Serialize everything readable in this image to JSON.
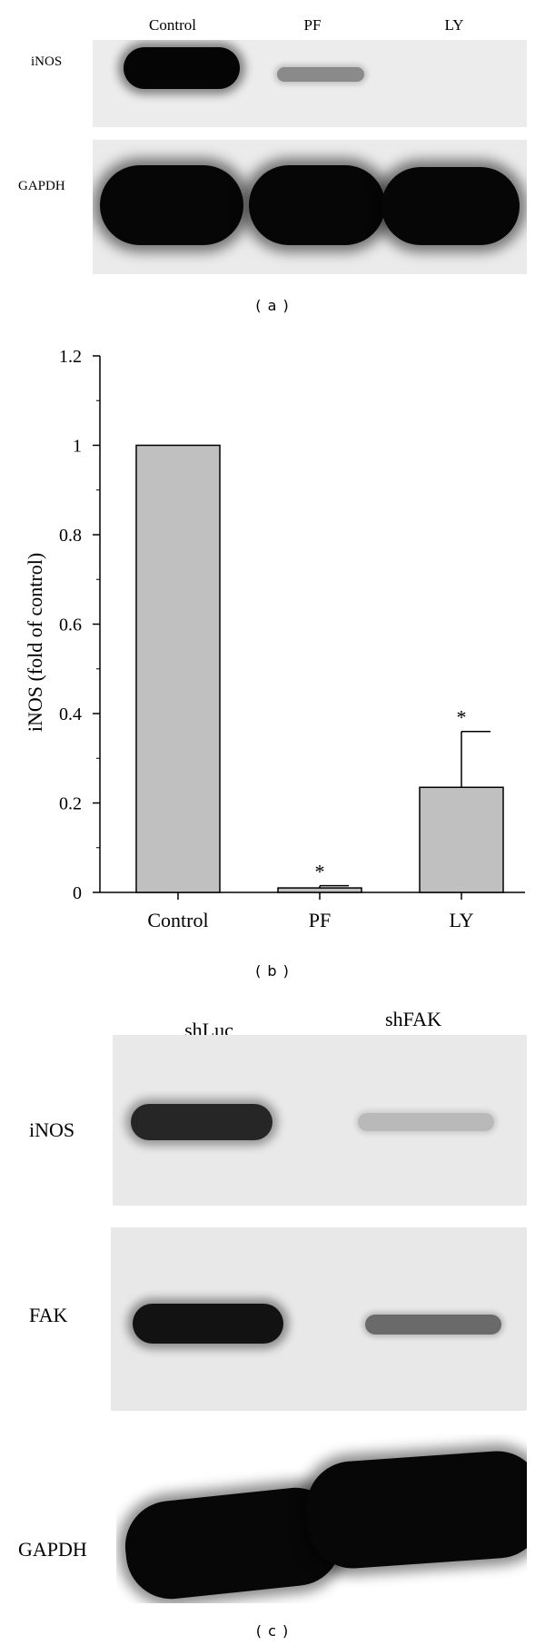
{
  "panel_a": {
    "lanes": [
      "Control",
      "PF",
      "LY"
    ],
    "rows": [
      "iNOS",
      "GAPDH"
    ],
    "caption": "( a )"
  },
  "panel_b": {
    "caption": "( b )"
  },
  "panel_c": {
    "lanes": [
      "shLuc",
      "shFAK"
    ],
    "rows": [
      "iNOS",
      "FAK",
      "GAPDH"
    ],
    "caption": "( c )"
  },
  "chart_data": {
    "type": "bar",
    "categories": [
      "Control",
      "PF",
      "LY"
    ],
    "values": [
      1.0,
      0.01,
      0.235
    ],
    "error_bars": [
      0,
      0.005,
      0.125
    ],
    "significance": [
      "",
      "*",
      "*"
    ],
    "ylabel": "iNOS (fold of control)",
    "xlabel": "",
    "ylim": [
      0,
      1.2
    ],
    "yticks": [
      "0",
      "0.2",
      "0.4",
      "0.6",
      "0.8",
      "1",
      "1.2"
    ],
    "grid": false,
    "bar_color": "#c0c0c0"
  }
}
